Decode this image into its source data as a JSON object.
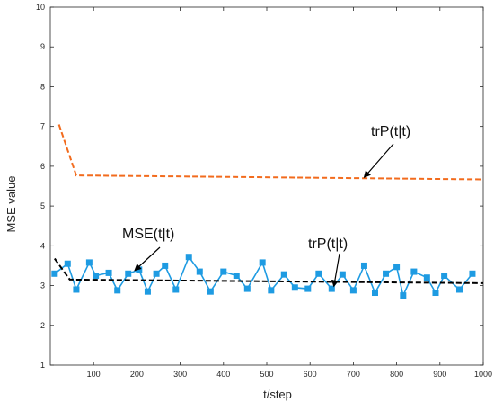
{
  "chart_data": {
    "type": "line",
    "xlabel": "t/step",
    "ylabel": "MSE value",
    "xlim": [
      0,
      1000
    ],
    "ylim": [
      1,
      10
    ],
    "xticks": [
      100,
      200,
      300,
      400,
      500,
      600,
      700,
      800,
      900,
      1000
    ],
    "yticks": [
      1,
      2,
      3,
      4,
      5,
      6,
      7,
      8,
      9,
      10
    ],
    "grid": false,
    "series": [
      {
        "name": "trP(t|t)",
        "style": "dashed",
        "color": "#F26B1D",
        "x": [
          20,
          60,
          1000
        ],
        "y": [
          7.05,
          5.77,
          5.67
        ]
      },
      {
        "name": "MSE(t|t)",
        "style": "solid-square-markers",
        "color": "#1E9BE2",
        "x": [
          10,
          40,
          60,
          90,
          105,
          135,
          155,
          180,
          205,
          225,
          245,
          265,
          290,
          320,
          345,
          370,
          400,
          430,
          455,
          490,
          510,
          540,
          565,
          595,
          620,
          650,
          675,
          700,
          725,
          750,
          775,
          800,
          815,
          840,
          870,
          890,
          910,
          945,
          975
        ],
        "y": [
          3.3,
          3.55,
          2.9,
          3.58,
          3.25,
          3.32,
          2.88,
          3.3,
          3.4,
          2.85,
          3.3,
          3.5,
          2.9,
          3.72,
          3.35,
          2.85,
          3.35,
          3.25,
          2.92,
          3.58,
          2.88,
          3.28,
          2.95,
          2.92,
          3.3,
          2.92,
          3.28,
          2.88,
          3.5,
          2.82,
          3.3,
          3.47,
          2.75,
          3.35,
          3.2,
          2.82,
          3.25,
          2.9,
          3.3
        ]
      },
      {
        "name": "trP̄(t|t)",
        "style": "dashed",
        "color": "#000000",
        "x": [
          10,
          45,
          1000
        ],
        "y": [
          3.68,
          3.15,
          3.06
        ]
      }
    ],
    "annotations": [
      {
        "text": "trP(t|t)",
        "target": [
          725,
          5.72
        ]
      },
      {
        "text": "MSE(t|t)",
        "target": [
          195,
          3.38
        ]
      },
      {
        "text": "trP̄(t|t)",
        "target": [
          655,
          2.98
        ]
      }
    ]
  }
}
